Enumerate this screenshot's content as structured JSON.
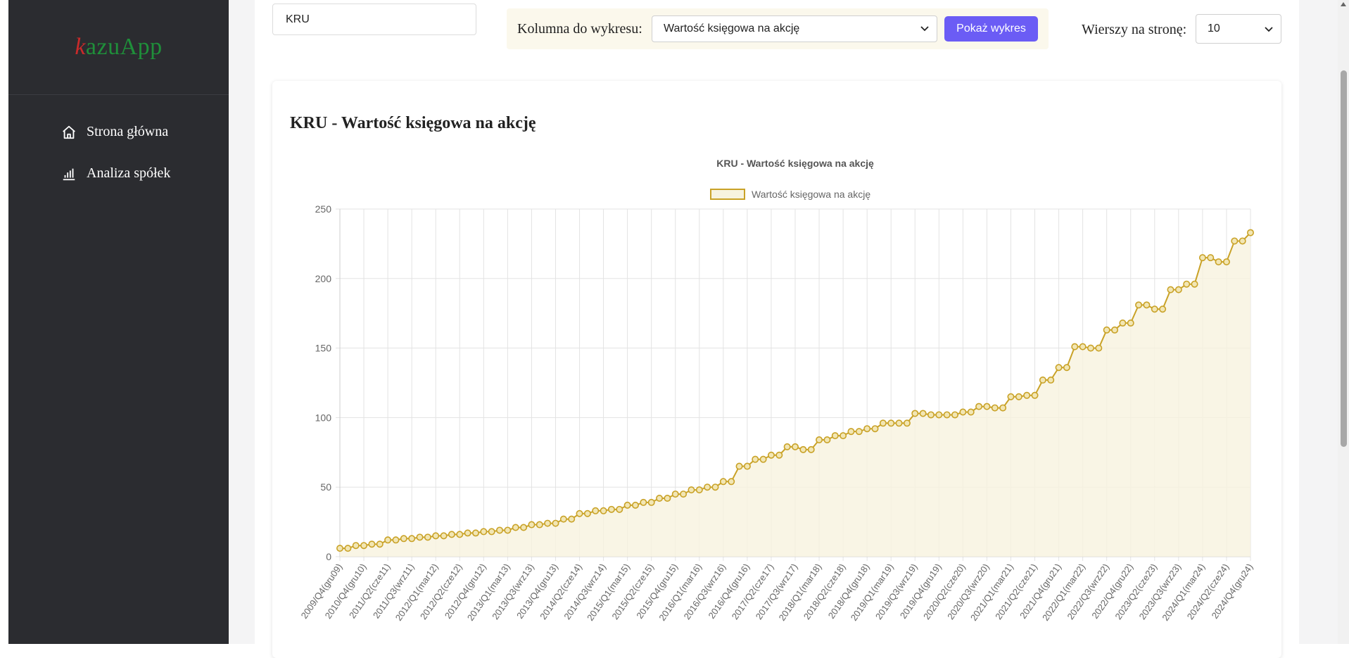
{
  "sidebar": {
    "logo": "kazuApp",
    "items": [
      {
        "label": "Strona główna",
        "icon": "home-icon"
      },
      {
        "label": "Analiza spółek",
        "icon": "bar-chart-icon"
      }
    ]
  },
  "toolbar": {
    "search_value": "KRU",
    "column_label": "Kolumna do wykresu:",
    "column_selected": "Wartość księgowa na akcję",
    "show_button": "Pokaż wykres",
    "rows_label": "Wierszy na stronę:",
    "rows_selected": "10"
  },
  "card": {
    "title": "KRU - Wartość księgowa na akcję"
  },
  "chart_data": {
    "type": "line",
    "title": "KRU - Wartość księgowa na akcję",
    "legend": "top",
    "series": [
      {
        "name": "Wartość księgowa na akcję",
        "color": "#c9a227"
      }
    ],
    "ylim": [
      0,
      250
    ],
    "yticks": [
      0,
      50,
      100,
      150,
      200,
      250
    ],
    "grid": true,
    "xtick_labels": [
      "2009/Q4(gru09)",
      "2010/Q4(gru10)",
      "2011/Q2(cze11)",
      "2011/Q3(wrz11)",
      "2012/Q1(mar12)",
      "2012/Q2(cze12)",
      "2012/Q4(gru12)",
      "2013/Q1(mar13)",
      "2013/Q3(wrz13)",
      "2013/Q4(gru13)",
      "2014/Q2(cze14)",
      "2014/Q3(wrz14)",
      "2015/Q1(mar15)",
      "2015/Q2(cze15)",
      "2015/Q4(gru15)",
      "2016/Q1(mar16)",
      "2016/Q3(wrz16)",
      "2016/Q4(gru16)",
      "2017/Q2(cze17)",
      "2017/Q3(wrz17)",
      "2018/Q1(mar18)",
      "2018/Q2(cze18)",
      "2018/Q4(gru18)",
      "2019/Q1(mar19)",
      "2019/Q3(wrz19)",
      "2019/Q4(gru19)",
      "2020/Q2(cze20)",
      "2020/Q3(wrz20)",
      "2021/Q1(mar21)",
      "2021/Q2(cze21)",
      "2021/Q4(gru21)",
      "2022/Q1(mar22)",
      "2022/Q3(wrz22)",
      "2022/Q4(gru22)",
      "2023/Q2(cze23)",
      "2023/Q3(wrz23)",
      "2024/Q1(mar24)",
      "2024/Q2(cze24)",
      "2024/Q4(gru24)"
    ],
    "values": [
      6,
      6,
      8,
      8,
      9,
      9,
      12,
      12,
      13,
      13,
      14,
      14,
      15,
      15,
      16,
      16,
      17,
      17,
      18,
      18,
      19,
      19,
      21,
      21,
      23,
      23,
      24,
      24,
      27,
      27,
      31,
      31,
      33,
      33,
      34,
      34,
      37,
      37,
      39,
      39,
      42,
      42,
      45,
      45,
      48,
      48,
      50,
      50,
      54,
      54,
      65,
      65,
      70,
      70,
      73,
      73,
      79,
      79,
      77,
      77,
      84,
      84,
      87,
      87,
      90,
      90,
      92,
      92,
      96,
      96,
      96,
      96,
      103,
      103,
      102,
      102,
      102,
      102,
      104,
      104,
      108,
      108,
      107,
      107,
      115,
      115,
      116,
      116,
      127,
      127,
      136,
      136,
      151,
      151,
      150,
      150,
      163,
      163,
      168,
      168,
      181,
      181,
      178,
      178,
      192,
      192,
      196,
      196,
      215,
      215,
      212,
      212,
      227,
      227,
      233
    ]
  }
}
